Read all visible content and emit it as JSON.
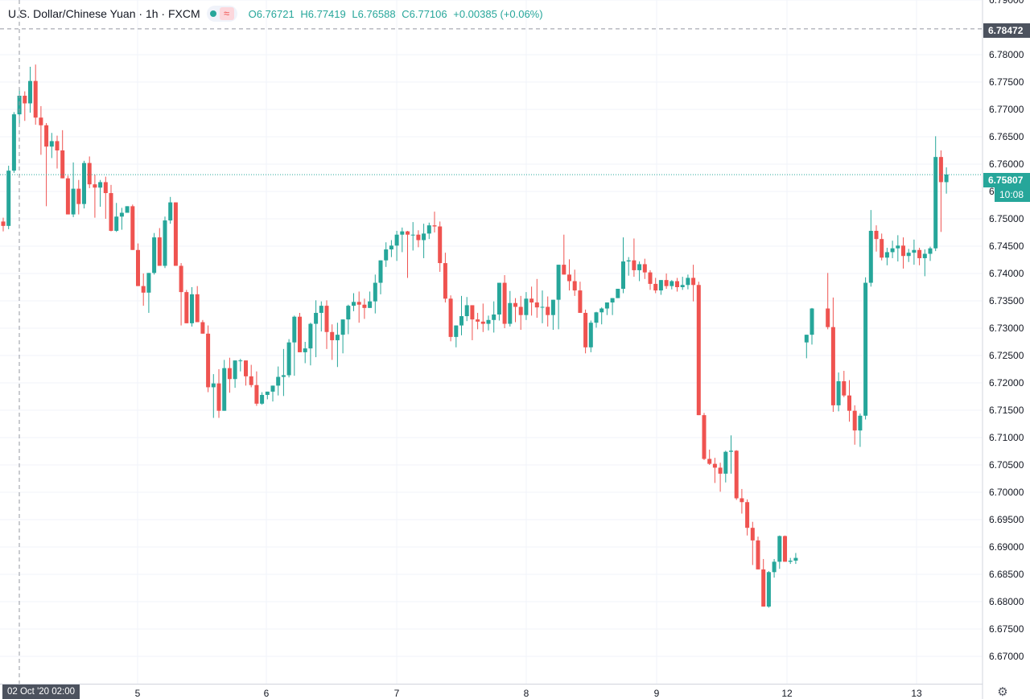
{
  "header": {
    "symbol_title": "U.S. Dollar/Chinese Yuan · 1h · FXCM",
    "open": "O6.76721",
    "high": "H6.77419",
    "low": "L6.76588",
    "close": "C6.77106",
    "change": "+0.00385 (+0.06%)",
    "wave_glyph": "≈",
    "status_icon": "market-status-dot-icon"
  },
  "price_tags": {
    "crosshair_price": "6.78472",
    "last_price": "6.75807",
    "countdown": "10:08"
  },
  "crosshair_time_label": "02 Oct '20   02:00",
  "settings_icon": "gear-icon",
  "colors": {
    "up": "#26a69a",
    "down": "#ef5350",
    "grid": "#f0f3fa",
    "axis_text": "#131722",
    "crosshair": "#9598a1",
    "crosshair_tag": "#4c525e",
    "last_price_tag": "#26a69a"
  },
  "chart_data": {
    "type": "candlestick",
    "ylim": [
      6.665,
      6.79
    ],
    "y_ticks": [
      "6.67000",
      "6.67500",
      "6.68000",
      "6.68500",
      "6.69000",
      "6.69500",
      "6.70000",
      "6.70500",
      "6.71000",
      "6.71500",
      "6.72000",
      "6.72500",
      "6.73000",
      "6.73500",
      "6.74000",
      "6.74500",
      "6.75000",
      "6.75500",
      "6.76000",
      "6.76500",
      "6.77000",
      "6.77500",
      "6.78000",
      "6.79000"
    ],
    "x_ticks": [
      "5",
      "6",
      "7",
      "8",
      "9",
      "12",
      "13"
    ],
    "crosshair": {
      "time": "02 Oct '20 02:00",
      "price": 6.78472
    },
    "last_price": 6.75807,
    "candles": [
      [
        6.7495,
        6.7502,
        6.7477,
        6.7487
      ],
      [
        6.7487,
        6.7597,
        6.7481,
        6.7588
      ],
      [
        6.7588,
        6.7695,
        6.7584,
        6.7691
      ],
      [
        6.7691,
        6.7738,
        6.7673,
        6.7725
      ],
      [
        6.7725,
        6.7733,
        6.7679,
        6.7711
      ],
      [
        6.7711,
        6.7778,
        6.7694,
        6.7752
      ],
      [
        6.7752,
        6.7782,
        6.7672,
        6.7685
      ],
      [
        6.7685,
        6.7706,
        6.7617,
        6.7671
      ],
      [
        6.7671,
        6.7675,
        6.7523,
        6.7632
      ],
      [
        6.7632,
        6.7657,
        6.7611,
        6.7642
      ],
      [
        6.7642,
        6.7652,
        6.7592,
        6.7625
      ],
      [
        6.7625,
        6.7662,
        6.7574,
        6.7574
      ],
      [
        6.7574,
        6.7579,
        6.7513,
        6.7508
      ],
      [
        6.7508,
        6.7603,
        6.7503,
        6.7555
      ],
      [
        6.7555,
        6.7571,
        6.7508,
        6.7527
      ],
      [
        6.7527,
        6.7606,
        6.7519,
        6.7602
      ],
      [
        6.7602,
        6.7614,
        6.7556,
        6.7563
      ],
      [
        6.7563,
        6.7581,
        6.7502,
        6.7557
      ],
      [
        6.7557,
        6.7571,
        6.7522,
        6.7567
      ],
      [
        6.7567,
        6.7577,
        6.75,
        6.7547
      ],
      [
        6.7547,
        6.7562,
        6.7477,
        6.7478
      ],
      [
        6.7478,
        6.7529,
        6.7476,
        6.7504
      ],
      [
        6.7504,
        6.752,
        6.748,
        6.7511
      ],
      [
        6.7511,
        6.7523,
        6.7511,
        6.7523
      ],
      [
        6.7523,
        6.7526,
        6.7448,
        6.7443
      ],
      [
        6.7443,
        6.7455,
        6.7377,
        6.7377
      ],
      [
        6.7377,
        6.74,
        6.7341,
        6.7365
      ],
      [
        6.7365,
        6.7401,
        6.7328,
        6.7401
      ],
      [
        6.7401,
        6.7474,
        6.7398,
        6.7466
      ],
      [
        6.7466,
        6.7483,
        6.7414,
        6.7414
      ],
      [
        6.7414,
        6.7504,
        6.741,
        6.7497
      ],
      [
        6.7497,
        6.754,
        6.7491,
        6.753
      ],
      [
        6.753,
        6.753,
        6.7414,
        6.7414
      ],
      [
        6.7414,
        6.7419,
        6.7305,
        6.7366
      ],
      [
        6.7366,
        6.737,
        6.7309,
        6.7309
      ],
      [
        6.7309,
        6.7375,
        6.7303,
        6.7362
      ],
      [
        6.7362,
        6.7377,
        6.7313,
        6.7311
      ],
      [
        6.7311,
        6.7315,
        6.729,
        6.729
      ],
      [
        6.729,
        6.7305,
        6.7183,
        6.7192
      ],
      [
        6.7192,
        6.7216,
        6.7136,
        6.7199
      ],
      [
        6.7199,
        6.7225,
        6.7136,
        6.7149
      ],
      [
        6.7149,
        6.7242,
        6.7159,
        6.7227
      ],
      [
        6.7227,
        6.7246,
        6.7182,
        6.7207
      ],
      [
        6.7207,
        6.7224,
        6.7191,
        6.7241
      ],
      [
        6.7241,
        6.7244,
        6.7221,
        6.7241
      ],
      [
        6.7241,
        6.7241,
        6.7195,
        6.7212
      ],
      [
        6.7212,
        6.7233,
        6.7192,
        6.7196
      ],
      [
        6.7196,
        6.7221,
        6.7158,
        6.7162
      ],
      [
        6.7162,
        6.7183,
        6.716,
        6.7178
      ],
      [
        6.7178,
        6.7183,
        6.717,
        6.7184
      ],
      [
        6.7184,
        6.7189,
        6.7166,
        6.7195
      ],
      [
        6.7195,
        6.723,
        6.7177,
        6.7211
      ],
      [
        6.7211,
        6.7262,
        6.7176,
        6.7214
      ],
      [
        6.7214,
        6.728,
        6.721,
        6.7274
      ],
      [
        6.7274,
        6.7323,
        6.7213,
        6.7321
      ],
      [
        6.7321,
        6.7328,
        6.7256,
        6.7256
      ],
      [
        6.7256,
        6.7275,
        6.7236,
        6.7263
      ],
      [
        6.7263,
        6.731,
        6.7232,
        6.7308
      ],
      [
        6.7308,
        6.7351,
        6.7247,
        6.7328
      ],
      [
        6.7328,
        6.7349,
        6.7294,
        6.7341
      ],
      [
        6.7341,
        6.7351,
        6.7262,
        6.7293
      ],
      [
        6.7293,
        6.7307,
        6.7242,
        6.7278
      ],
      [
        6.7278,
        6.731,
        6.7229,
        6.7288
      ],
      [
        6.7288,
        6.7313,
        6.7254,
        6.7316
      ],
      [
        6.7316,
        6.7343,
        6.7289,
        6.7341
      ],
      [
        6.7341,
        6.7364,
        6.7331,
        6.7348
      ],
      [
        6.7348,
        6.7367,
        6.731,
        6.7343
      ],
      [
        6.7343,
        6.7354,
        6.7317,
        6.7337
      ],
      [
        6.7337,
        6.7367,
        6.7337,
        6.7349
      ],
      [
        6.7349,
        6.7398,
        6.7327,
        6.7383
      ],
      [
        6.7383,
        6.7424,
        6.7362,
        6.7424
      ],
      [
        6.7424,
        6.7457,
        6.7412,
        6.7444
      ],
      [
        6.7444,
        6.7461,
        6.743,
        6.7451
      ],
      [
        6.7451,
        6.7478,
        6.7423,
        6.7471
      ],
      [
        6.7471,
        6.7484,
        6.7439,
        6.7477
      ],
      [
        6.7477,
        6.7478,
        6.7392,
        6.7471
      ],
      [
        6.7471,
        6.7494,
        6.7442,
        6.7471
      ],
      [
        6.7471,
        6.7479,
        6.7448,
        6.7461
      ],
      [
        6.7461,
        6.7491,
        6.7428,
        6.7473
      ],
      [
        6.7473,
        6.7493,
        6.7463,
        6.7488
      ],
      [
        6.7488,
        6.7513,
        6.7475,
        6.7486
      ],
      [
        6.7486,
        6.7495,
        6.7403,
        6.7419
      ],
      [
        6.7419,
        6.7438,
        6.7347,
        6.7354
      ],
      [
        6.7354,
        6.736,
        6.7276,
        6.7284
      ],
      [
        6.7284,
        6.7299,
        6.7265,
        6.7305
      ],
      [
        6.7305,
        6.7359,
        6.7287,
        6.7322
      ],
      [
        6.7322,
        6.7357,
        6.7313,
        6.7342
      ],
      [
        6.7342,
        6.7342,
        6.7278,
        6.7316
      ],
      [
        6.7316,
        6.7328,
        6.7298,
        6.7312
      ],
      [
        6.7312,
        6.7345,
        6.7293,
        6.7308
      ],
      [
        6.7308,
        6.7323,
        6.7296,
        6.7315
      ],
      [
        6.7315,
        6.7349,
        6.7292,
        6.7325
      ],
      [
        6.7325,
        6.7369,
        6.7314,
        6.7383
      ],
      [
        6.7383,
        6.7397,
        6.73,
        6.7308
      ],
      [
        6.7308,
        6.7368,
        6.7303,
        6.7346
      ],
      [
        6.7346,
        6.7355,
        6.7311,
        6.7339
      ],
      [
        6.7339,
        6.7359,
        6.7297,
        6.7324
      ],
      [
        6.7324,
        6.7366,
        6.7315,
        6.7354
      ],
      [
        6.7354,
        6.7376,
        6.7323,
        6.7347
      ],
      [
        6.7347,
        6.739,
        6.7319,
        6.7338
      ],
      [
        6.7338,
        6.7369,
        6.7309,
        6.7339
      ],
      [
        6.7339,
        6.7358,
        6.7303,
        6.7324
      ],
      [
        6.7324,
        6.735,
        6.7297,
        6.7352
      ],
      [
        6.7352,
        6.7364,
        6.7298,
        6.7416
      ],
      [
        6.7416,
        6.7471,
        6.7401,
        6.7398
      ],
      [
        6.7398,
        6.7426,
        6.7369,
        6.7386
      ],
      [
        6.7386,
        6.7407,
        6.7359,
        6.7369
      ],
      [
        6.7369,
        6.7385,
        6.733,
        6.7328
      ],
      [
        6.7328,
        6.7334,
        6.7254,
        6.7265
      ],
      [
        6.7265,
        6.7314,
        6.7256,
        6.731
      ],
      [
        6.731,
        6.733,
        6.7301,
        6.7329
      ],
      [
        6.7329,
        6.7338,
        6.7307,
        6.7336
      ],
      [
        6.7336,
        6.7342,
        6.7324,
        6.7347
      ],
      [
        6.7347,
        6.7351,
        6.7324,
        6.7355
      ],
      [
        6.7355,
        6.7361,
        6.7362,
        6.7372
      ],
      [
        6.7372,
        6.7466,
        6.7364,
        6.7422
      ],
      [
        6.7422,
        6.743,
        6.7396,
        6.7424
      ],
      [
        6.7424,
        6.7464,
        6.7394,
        6.7406
      ],
      [
        6.7406,
        6.7422,
        6.7386,
        6.7417
      ],
      [
        6.7417,
        6.7427,
        6.739,
        6.7402
      ],
      [
        6.7402,
        6.7406,
        6.737,
        6.7381
      ],
      [
        6.7381,
        6.7392,
        6.7364,
        6.7369
      ],
      [
        6.7369,
        6.7388,
        6.7361,
        6.7388
      ],
      [
        6.7388,
        6.74,
        6.7372,
        6.7377
      ],
      [
        6.7377,
        6.7388,
        6.7371,
        6.7386
      ],
      [
        6.7386,
        6.7392,
        6.7367,
        6.7375
      ],
      [
        6.7375,
        6.7394,
        6.737,
        6.7379
      ],
      [
        6.7379,
        6.7398,
        6.7371,
        6.7392
      ],
      [
        6.7392,
        6.7416,
        6.7349,
        6.7379
      ],
      [
        6.7379,
        6.7385,
        6.7141,
        6.7141
      ],
      [
        6.7141,
        6.7145,
        6.7059,
        6.7061
      ],
      [
        6.7061,
        6.7078,
        6.705,
        6.7052
      ],
      [
        6.7052,
        6.7063,
        6.7017,
        6.7045
      ],
      [
        6.7045,
        6.7054,
        6.7001,
        6.7034
      ],
      [
        6.7034,
        6.7076,
        6.7018,
        6.7074
      ],
      [
        6.7074,
        6.7104,
        6.7034,
        6.7076
      ],
      [
        6.7076,
        6.7077,
        6.6986,
        6.6989
      ],
      [
        6.6989,
        6.7006,
        6.6961,
        6.6982
      ],
      [
        6.6982,
        6.6987,
        6.6921,
        6.6935
      ],
      [
        6.6935,
        6.6946,
        6.6867,
        6.6912
      ],
      [
        6.6912,
        6.6919,
        6.6874,
        6.6859
      ],
      [
        6.6859,
        6.6878,
        6.6803,
        6.6791
      ],
      [
        6.6791,
        6.6856,
        6.6789,
        6.6854
      ],
      [
        6.6854,
        6.6878,
        6.6844,
        6.6873
      ],
      [
        6.6873,
        6.6921,
        6.686,
        6.692
      ],
      [
        6.692,
        6.6921,
        6.6882,
        6.6873
      ],
      [
        6.6873,
        6.688,
        6.6869,
        6.6875
      ],
      [
        6.6875,
        6.6889,
        6.6869,
        6.688
      ],
      null,
      [
        6.7274,
        6.7285,
        6.7245,
        6.7288
      ],
      [
        6.7288,
        6.7337,
        6.727,
        6.7336
      ],
      [
        6.7336,
        6.7401,
        6.7298,
        6.7302
      ],
      [
        6.7302,
        6.7356,
        6.7147,
        6.7159
      ],
      [
        6.7159,
        6.7219,
        6.7148,
        6.7203
      ],
      [
        6.7203,
        6.7222,
        6.7174,
        6.7177
      ],
      [
        6.7177,
        6.7205,
        6.7129,
        6.7149
      ],
      [
        6.7149,
        6.7159,
        6.7087,
        6.7113
      ],
      [
        6.7113,
        6.7144,
        6.7083,
        6.714
      ],
      [
        6.714,
        6.7393,
        6.7133,
        6.7383
      ],
      [
        6.7383,
        6.7516,
        6.7376,
        6.7478
      ],
      [
        6.7478,
        6.7488,
        6.744,
        6.7463
      ],
      [
        6.7463,
        6.7473,
        6.7424,
        6.7429
      ],
      [
        6.7429,
        6.7447,
        6.7415,
        6.7439
      ],
      [
        6.7439,
        6.746,
        6.7428,
        6.7446
      ],
      [
        6.7446,
        6.747,
        6.7422,
        6.7451
      ],
      [
        6.7451,
        6.7466,
        6.7409,
        6.7432
      ],
      [
        6.7432,
        6.7445,
        6.7421,
        6.7438
      ],
      [
        6.7438,
        6.7462,
        6.7416,
        6.7443
      ],
      [
        6.7443,
        6.7447,
        6.7415,
        6.7428
      ],
      [
        6.7428,
        6.7444,
        6.7395,
        6.7436
      ],
      [
        6.7436,
        6.7449,
        6.7423,
        6.7446
      ],
      [
        6.7446,
        6.7651,
        6.7441,
        6.7613
      ],
      [
        6.7613,
        6.7625,
        6.7476,
        6.7567
      ],
      [
        6.7567,
        6.7594,
        6.7546,
        6.7581
      ]
    ]
  }
}
